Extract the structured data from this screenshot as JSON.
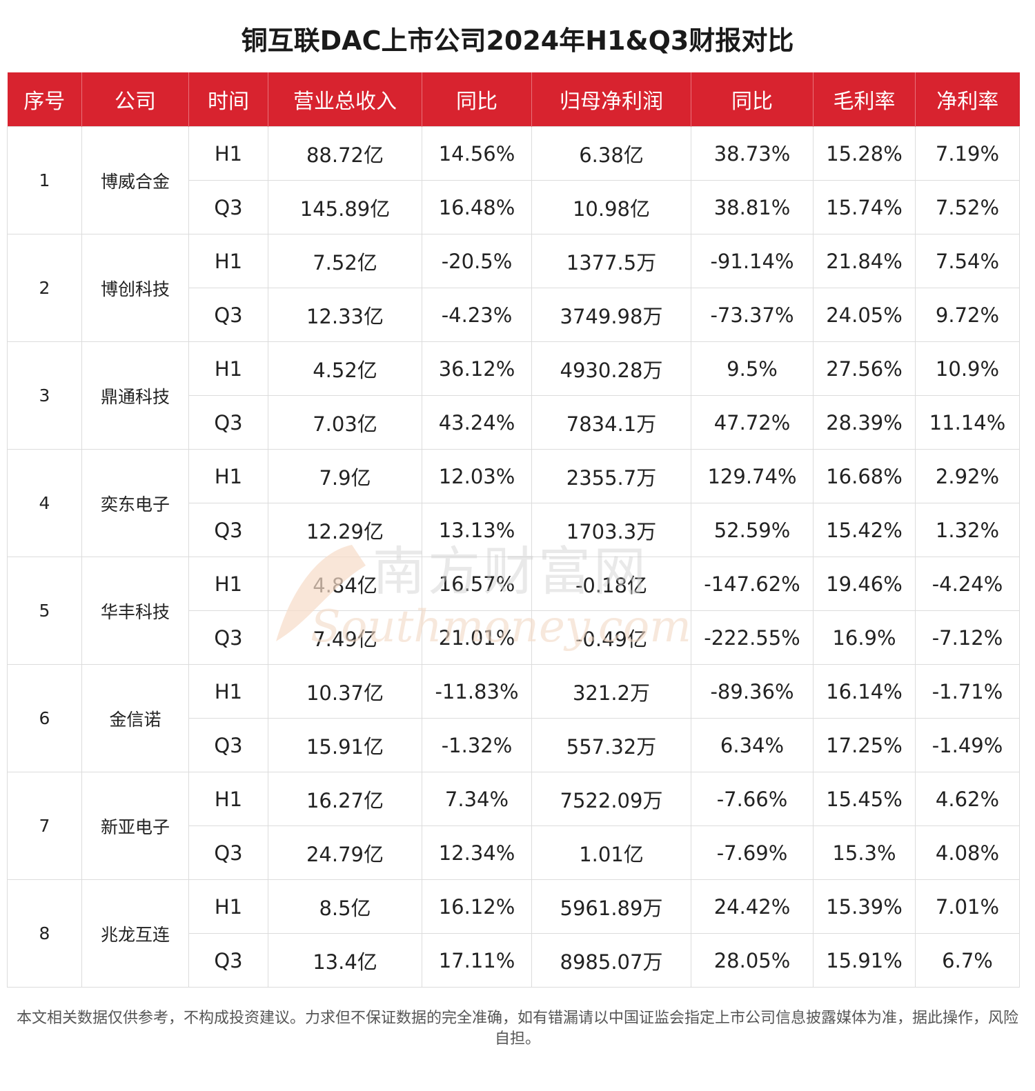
{
  "title": "铜互联DAC上市公司2024年H1&Q3财报对比",
  "table": {
    "headers": [
      "序号",
      "公司",
      "时间",
      "营业总收入",
      "同比",
      "归母净利润",
      "同比",
      "毛利率",
      "净利率"
    ],
    "companies": [
      {
        "index": "1",
        "name": "博威合金",
        "rows": [
          [
            "H1",
            "88.72亿",
            "14.56%",
            "6.38亿",
            "38.73%",
            "15.28%",
            "7.19%"
          ],
          [
            "Q3",
            "145.89亿",
            "16.48%",
            "10.98亿",
            "38.81%",
            "15.74%",
            "7.52%"
          ]
        ]
      },
      {
        "index": "2",
        "name": "博创科技",
        "rows": [
          [
            "H1",
            "7.52亿",
            "-20.5%",
            "1377.5万",
            "-91.14%",
            "21.84%",
            "7.54%"
          ],
          [
            "Q3",
            "12.33亿",
            "-4.23%",
            "3749.98万",
            "-73.37%",
            "24.05%",
            "9.72%"
          ]
        ]
      },
      {
        "index": "3",
        "name": "鼎通科技",
        "rows": [
          [
            "H1",
            "4.52亿",
            "36.12%",
            "4930.28万",
            "9.5%",
            "27.56%",
            "10.9%"
          ],
          [
            "Q3",
            "7.03亿",
            "43.24%",
            "7834.1万",
            "47.72%",
            "28.39%",
            "11.14%"
          ]
        ]
      },
      {
        "index": "4",
        "name": "奕东电子",
        "rows": [
          [
            "H1",
            "7.9亿",
            "12.03%",
            "2355.7万",
            "129.74%",
            "16.68%",
            "2.92%"
          ],
          [
            "Q3",
            "12.29亿",
            "13.13%",
            "1703.3万",
            "52.59%",
            "15.42%",
            "1.32%"
          ]
        ]
      },
      {
        "index": "5",
        "name": "华丰科技",
        "rows": [
          [
            "H1",
            "4.84亿",
            "16.57%",
            "-0.18亿",
            "-147.62%",
            "19.46%",
            "-4.24%"
          ],
          [
            "Q3",
            "7.49亿",
            "21.01%",
            "-0.49亿",
            "-222.55%",
            "16.9%",
            "-7.12%"
          ]
        ]
      },
      {
        "index": "6",
        "name": "金信诺",
        "rows": [
          [
            "H1",
            "10.37亿",
            "-11.83%",
            "321.2万",
            "-89.36%",
            "16.14%",
            "-1.71%"
          ],
          [
            "Q3",
            "15.91亿",
            "-1.32%",
            "557.32万",
            "6.34%",
            "17.25%",
            "-1.49%"
          ]
        ]
      },
      {
        "index": "7",
        "name": "新亚电子",
        "rows": [
          [
            "H1",
            "16.27亿",
            "7.34%",
            "7522.09万",
            "-7.66%",
            "15.45%",
            "4.62%"
          ],
          [
            "Q3",
            "24.79亿",
            "12.34%",
            "1.01亿",
            "-7.69%",
            "15.3%",
            "4.08%"
          ]
        ]
      },
      {
        "index": "8",
        "name": "兆龙互连",
        "rows": [
          [
            "H1",
            "8.5亿",
            "16.12%",
            "5961.89万",
            "24.42%",
            "15.39%",
            "7.01%"
          ],
          [
            "Q3",
            "13.4亿",
            "17.11%",
            "8985.07万",
            "28.05%",
            "15.91%",
            "6.7%"
          ]
        ]
      }
    ]
  },
  "watermark": {
    "cn": "南方财富网",
    "en": "Southmoney.com"
  },
  "footnote": "本文相关数据仅供参考，不构成投资建议。力求但不保证数据的完全准确，如有错漏请以中国证监会指定上市公司信息披露媒体为准，据此操作，风险自担。",
  "colors": {
    "header_bg": "#d8232f",
    "header_text": "#ffffff",
    "border": "#dcdcdc"
  },
  "chart_data": {
    "type": "table",
    "title": "铜互联DAC上市公司2024年H1&Q3财报对比",
    "columns": [
      "序号",
      "公司",
      "时间",
      "营业总收入",
      "同比",
      "归母净利润",
      "同比",
      "毛利率",
      "净利率"
    ],
    "rows": [
      [
        "1",
        "博威合金",
        "H1",
        "88.72亿",
        "14.56%",
        "6.38亿",
        "38.73%",
        "15.28%",
        "7.19%"
      ],
      [
        "1",
        "博威合金",
        "Q3",
        "145.89亿",
        "16.48%",
        "10.98亿",
        "38.81%",
        "15.74%",
        "7.52%"
      ],
      [
        "2",
        "博创科技",
        "H1",
        "7.52亿",
        "-20.5%",
        "1377.5万",
        "-91.14%",
        "21.84%",
        "7.54%"
      ],
      [
        "2",
        "博创科技",
        "Q3",
        "12.33亿",
        "-4.23%",
        "3749.98万",
        "-73.37%",
        "24.05%",
        "9.72%"
      ],
      [
        "3",
        "鼎通科技",
        "H1",
        "4.52亿",
        "36.12%",
        "4930.28万",
        "9.5%",
        "27.56%",
        "10.9%"
      ],
      [
        "3",
        "鼎通科技",
        "Q3",
        "7.03亿",
        "43.24%",
        "7834.1万",
        "47.72%",
        "28.39%",
        "11.14%"
      ],
      [
        "4",
        "奕东电子",
        "H1",
        "7.9亿",
        "12.03%",
        "2355.7万",
        "129.74%",
        "16.68%",
        "2.92%"
      ],
      [
        "4",
        "奕东电子",
        "Q3",
        "12.29亿",
        "13.13%",
        "1703.3万",
        "52.59%",
        "15.42%",
        "1.32%"
      ],
      [
        "5",
        "华丰科技",
        "H1",
        "4.84亿",
        "16.57%",
        "-0.18亿",
        "-147.62%",
        "19.46%",
        "-4.24%"
      ],
      [
        "5",
        "华丰科技",
        "Q3",
        "7.49亿",
        "21.01%",
        "-0.49亿",
        "-222.55%",
        "16.9%",
        "-7.12%"
      ],
      [
        "6",
        "金信诺",
        "H1",
        "10.37亿",
        "-11.83%",
        "321.2万",
        "-89.36%",
        "16.14%",
        "-1.71%"
      ],
      [
        "6",
        "金信诺",
        "Q3",
        "15.91亿",
        "-1.32%",
        "557.32万",
        "6.34%",
        "17.25%",
        "-1.49%"
      ],
      [
        "7",
        "新亚电子",
        "H1",
        "16.27亿",
        "7.34%",
        "7522.09万",
        "-7.66%",
        "15.45%",
        "4.62%"
      ],
      [
        "7",
        "新亚电子",
        "Q3",
        "24.79亿",
        "12.34%",
        "1.01亿",
        "-7.69%",
        "15.3%",
        "4.08%"
      ],
      [
        "8",
        "兆龙互连",
        "H1",
        "8.5亿",
        "16.12%",
        "5961.89万",
        "24.42%",
        "15.39%",
        "7.01%"
      ],
      [
        "8",
        "兆龙互连",
        "Q3",
        "13.4亿",
        "17.11%",
        "8985.07万",
        "28.05%",
        "15.91%",
        "6.7%"
      ]
    ]
  }
}
